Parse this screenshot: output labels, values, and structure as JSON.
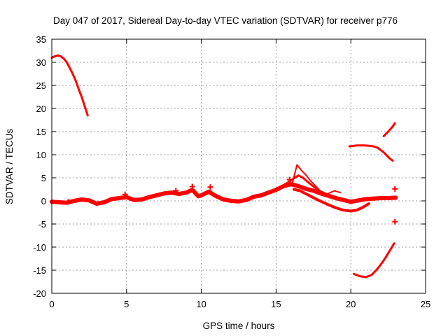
{
  "chart_data": {
    "type": "scatter",
    "title": "Day 047 of 2017, Sidereal Day-to-day VTEC variation (SDTVAR) for receiver p776",
    "xlabel": "GPS time / hours",
    "ylabel": "SDTVAR / TECUs",
    "xlim": [
      0,
      25
    ],
    "ylim": [
      -20,
      35
    ],
    "xticks": [
      0,
      5,
      10,
      15,
      20,
      25
    ],
    "yticks": [
      -20,
      -15,
      -10,
      -5,
      0,
      5,
      10,
      15,
      20,
      25,
      30,
      35
    ],
    "grid": true,
    "color": "#ff0000",
    "series": [
      {
        "name": "high-arc-start",
        "width": 3,
        "points": [
          [
            0,
            31
          ],
          [
            0.2,
            31.3
          ],
          [
            0.4,
            31.5
          ],
          [
            0.6,
            31.3
          ],
          [
            0.8,
            30.8
          ],
          [
            1.0,
            30
          ],
          [
            1.2,
            28.8
          ],
          [
            1.4,
            27.5
          ],
          [
            1.6,
            26
          ],
          [
            1.8,
            24.2
          ],
          [
            2.0,
            22.5
          ],
          [
            2.2,
            20.5
          ],
          [
            2.4,
            18.5
          ]
        ]
      },
      {
        "name": "main-band",
        "width": 6,
        "points": [
          [
            0,
            -0.2
          ],
          [
            0.5,
            -0.3
          ],
          [
            1,
            -0.4
          ],
          [
            1.5,
            0
          ],
          [
            2,
            0.3
          ],
          [
            2.5,
            0.1
          ],
          [
            3,
            -0.6
          ],
          [
            3.5,
            -0.3
          ],
          [
            4,
            0.4
          ],
          [
            4.5,
            0.6
          ],
          [
            5,
            0.8
          ],
          [
            5.5,
            0.2
          ],
          [
            6,
            0.3
          ],
          [
            6.5,
            0.8
          ],
          [
            7,
            1.2
          ],
          [
            7.5,
            1.6
          ],
          [
            8,
            1.8
          ],
          [
            8.5,
            1.5
          ],
          [
            9,
            1.8
          ],
          [
            9.4,
            2.4
          ],
          [
            9.8,
            1.0
          ],
          [
            10,
            1.2
          ],
          [
            10.5,
            2.0
          ],
          [
            11,
            1.0
          ],
          [
            11.5,
            0.3
          ],
          [
            12,
            0.0
          ],
          [
            12.5,
            -0.1
          ],
          [
            13,
            0.2
          ],
          [
            13.5,
            0.9
          ],
          [
            14,
            1.2
          ],
          [
            14.5,
            1.8
          ],
          [
            15,
            2.4
          ],
          [
            15.5,
            3.2
          ],
          [
            16,
            3.6
          ],
          [
            16.5,
            3.2
          ],
          [
            17,
            2.6
          ],
          [
            17.5,
            2.2
          ],
          [
            18,
            1.6
          ],
          [
            18.5,
            1.1
          ],
          [
            19,
            0.6
          ],
          [
            19.5,
            0.2
          ],
          [
            20,
            -0.2
          ],
          [
            20.5,
            0.1
          ],
          [
            21,
            0.4
          ],
          [
            21.5,
            0.5
          ],
          [
            22,
            0.6
          ],
          [
            22.5,
            0.6
          ],
          [
            23,
            0.7
          ]
        ]
      },
      {
        "name": "evening-upper-branch",
        "width": 3,
        "points": [
          [
            14.8,
            2.0
          ],
          [
            15.3,
            3.0
          ],
          [
            15.8,
            4.0
          ],
          [
            16.2,
            4.9
          ],
          [
            16.5,
            5.5
          ],
          [
            16.8,
            5.0
          ],
          [
            17.2,
            3.9
          ],
          [
            17.6,
            2.9
          ],
          [
            18,
            2.0
          ],
          [
            18.5,
            1.3
          ],
          [
            19,
            0.7
          ],
          [
            19.5,
            0.1
          ],
          [
            20,
            -0.3
          ],
          [
            20.5,
            0.1
          ],
          [
            21,
            0.6
          ]
        ]
      },
      {
        "name": "evening-lower-branch",
        "width": 4,
        "points": [
          [
            16.2,
            2.5
          ],
          [
            16.6,
            2.2
          ],
          [
            17.2,
            1.2
          ],
          [
            17.8,
            0.2
          ],
          [
            18.4,
            -0.7
          ],
          [
            19,
            -1.5
          ],
          [
            19.5,
            -2.0
          ],
          [
            20,
            -2.2
          ],
          [
            20.4,
            -2.0
          ],
          [
            20.8,
            -1.4
          ],
          [
            21.2,
            -0.6
          ]
        ]
      },
      {
        "name": "spike-16h",
        "width": 2,
        "points": [
          [
            16.1,
            4.0
          ],
          [
            16.4,
            7.8
          ],
          [
            16.7,
            6.6
          ],
          [
            17.0,
            5.6
          ],
          [
            17.3,
            4.4
          ],
          [
            17.7,
            3.0
          ],
          [
            18.0,
            2.0
          ]
        ]
      },
      {
        "name": "spike-18h",
        "width": 2,
        "points": [
          [
            18.1,
            1.2
          ],
          [
            18.5,
            1.6
          ],
          [
            18.9,
            2.2
          ],
          [
            19.3,
            1.8
          ]
        ]
      },
      {
        "name": "mid-segment-12",
        "width": 3,
        "points": [
          [
            19.9,
            11.8
          ],
          [
            20.4,
            12.0
          ],
          [
            20.9,
            12.0
          ],
          [
            21.4,
            11.9
          ],
          [
            21.8,
            11.5
          ],
          [
            22.2,
            10.5
          ],
          [
            22.6,
            9.2
          ],
          [
            22.8,
            8.7
          ]
        ]
      },
      {
        "name": "rising-segment-16",
        "width": 3,
        "points": [
          [
            22.2,
            14.0
          ],
          [
            22.5,
            15.0
          ],
          [
            22.8,
            16.1
          ],
          [
            22.95,
            16.8
          ]
        ]
      },
      {
        "name": "lower-arc",
        "width": 3,
        "points": [
          [
            20.2,
            -15.8
          ],
          [
            20.6,
            -16.3
          ],
          [
            21.0,
            -16.5
          ],
          [
            21.4,
            -16.0
          ],
          [
            21.7,
            -15.0
          ],
          [
            22.0,
            -13.8
          ],
          [
            22.3,
            -12.4
          ],
          [
            22.6,
            -10.8
          ],
          [
            22.9,
            -9.2
          ]
        ]
      }
    ],
    "markers": [
      [
        22.95,
        2.6
      ],
      [
        22.95,
        -4.5
      ],
      [
        15.9,
        4.6
      ],
      [
        1.1,
        -0.2
      ],
      [
        9.4,
        3.1
      ],
      [
        10.6,
        3.0
      ],
      [
        8.3,
        2.2
      ],
      [
        4.9,
        1.4
      ]
    ]
  }
}
